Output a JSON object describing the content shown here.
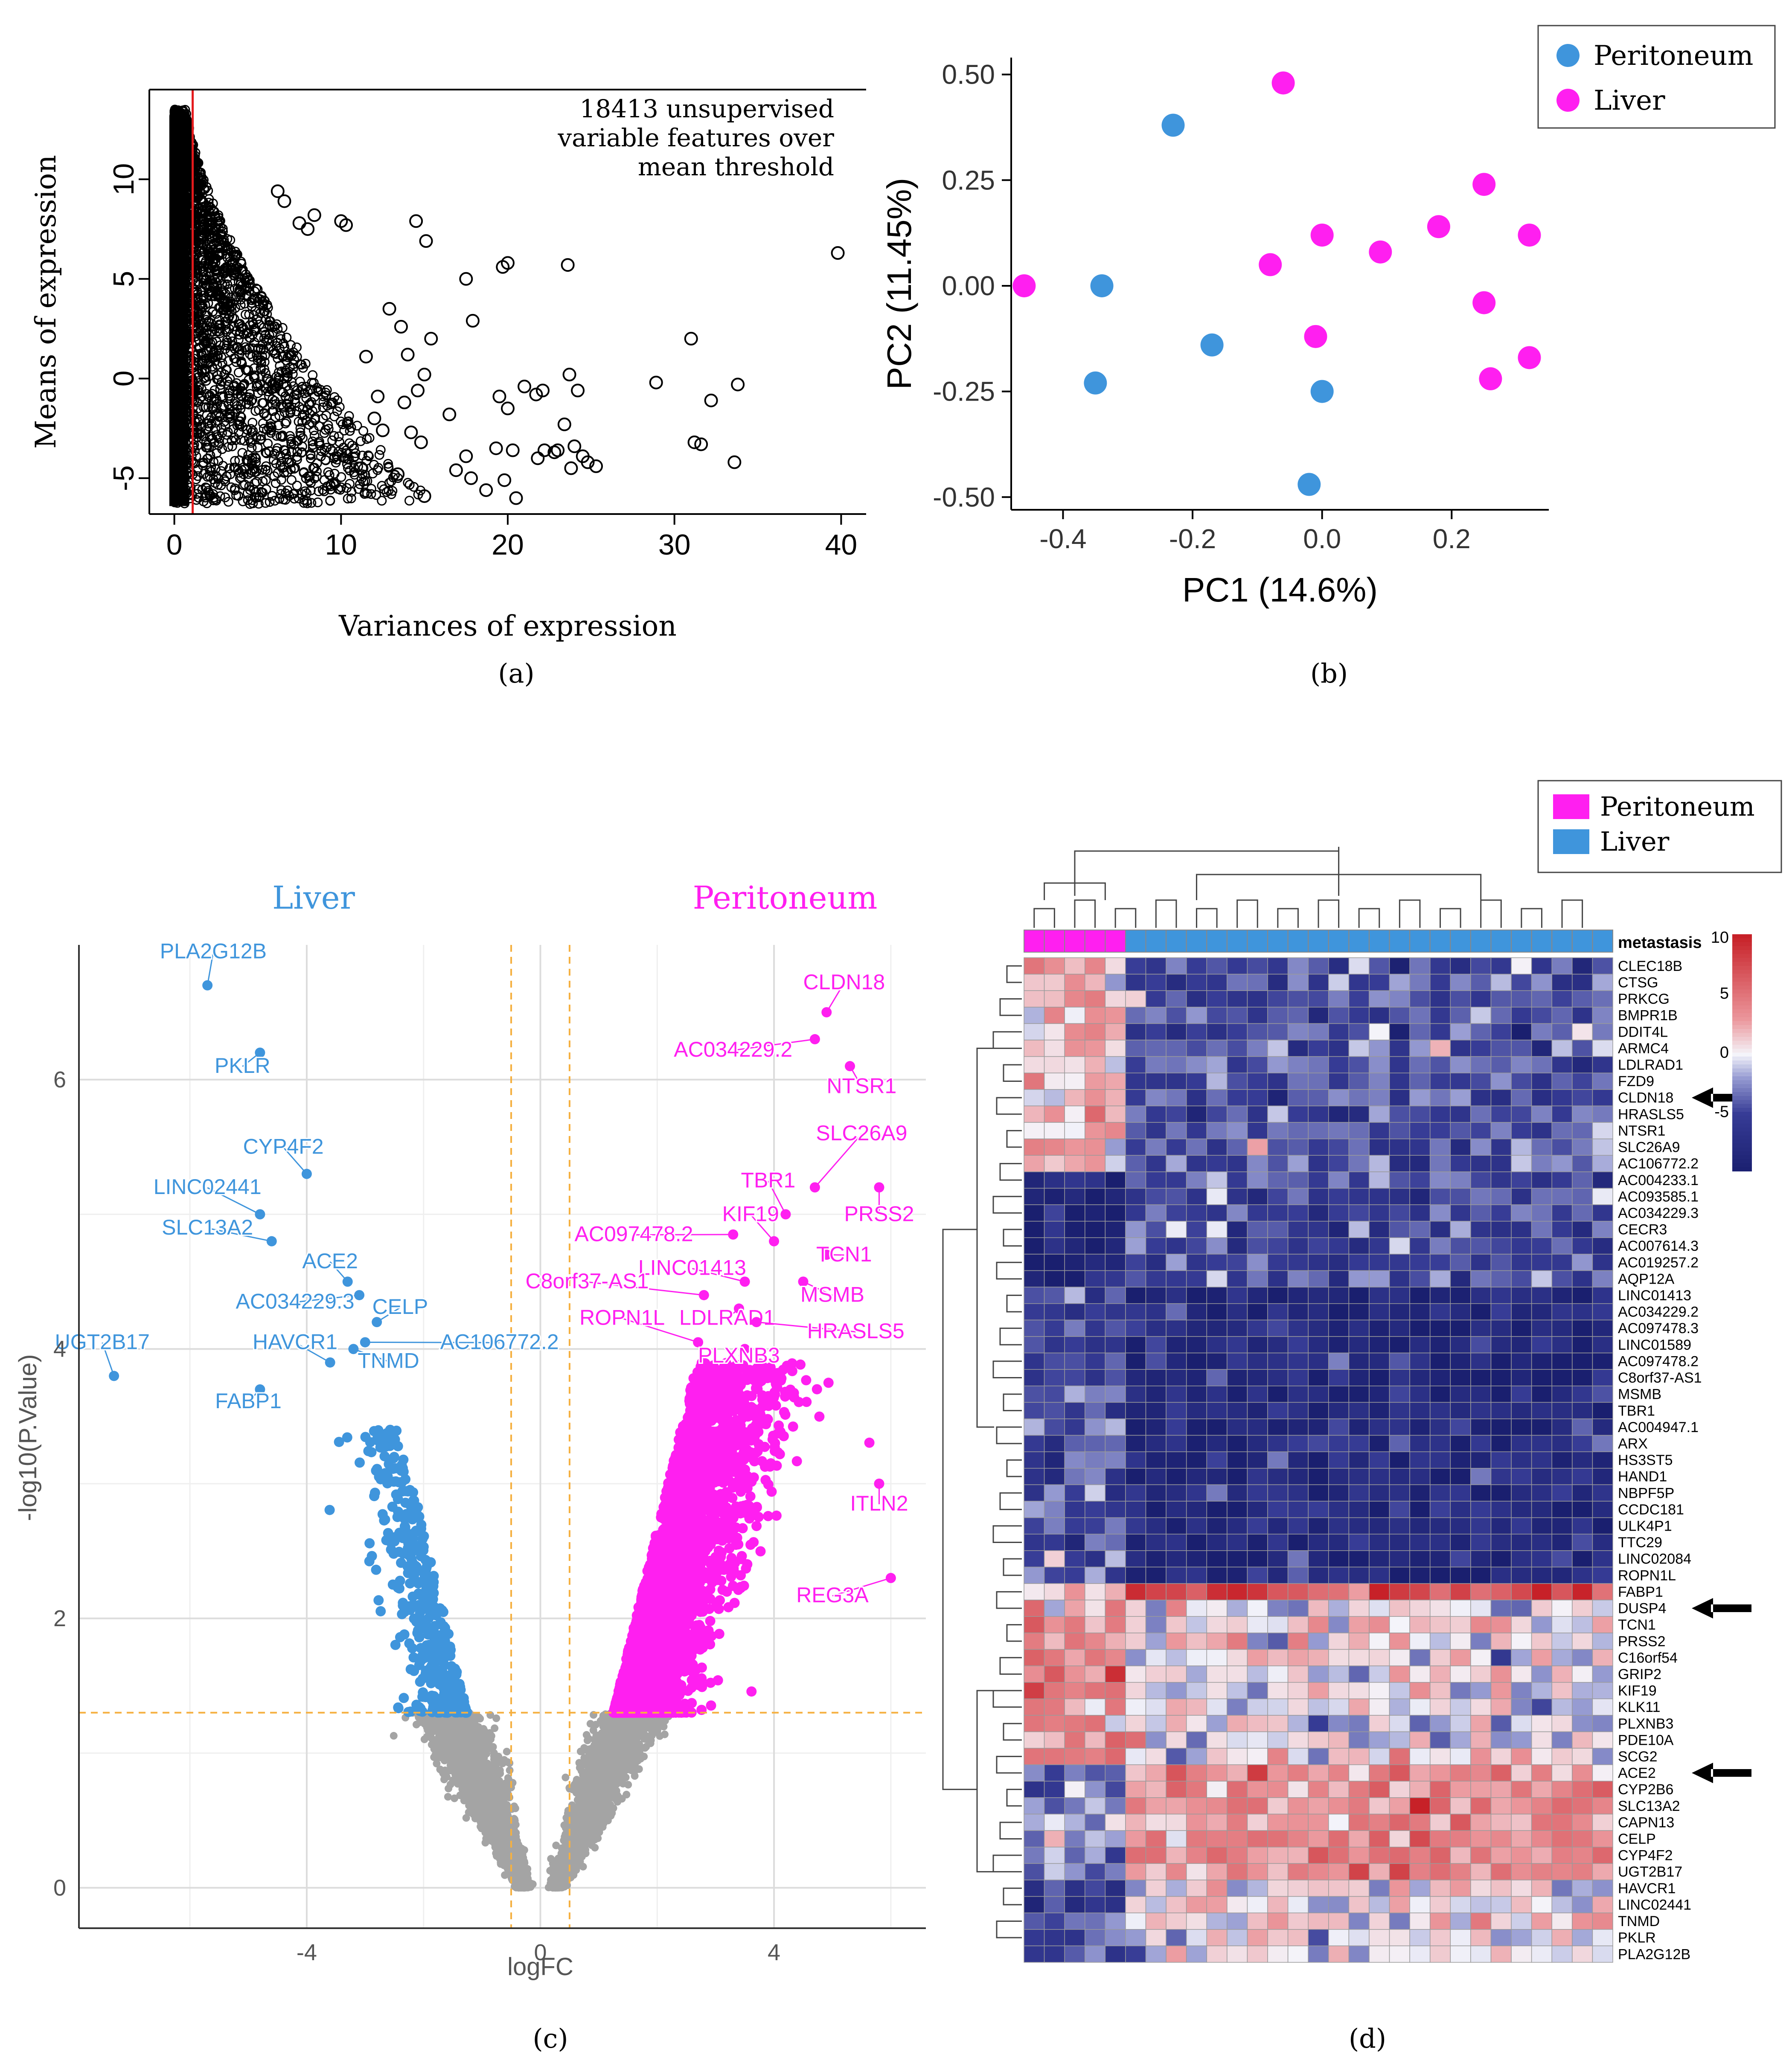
{
  "panel_labels": {
    "a": "(a)",
    "b": "(b)",
    "c": "(c)",
    "d": "(d)"
  },
  "colors": {
    "liver": "#3f95dc",
    "peritoneum": "#ff1ff0",
    "grey": "#a4a4a4",
    "threshold": "#f5b041",
    "red_line": "#e41a1c",
    "heat_low": "#1a1f6f",
    "heat_mid": "#f4f4fa",
    "heat_high": "#c72128"
  },
  "chart_data": [
    {
      "type": "scatter",
      "panel": "a",
      "title": "",
      "annotation": [
        "18413 unsupervised",
        "variable features over",
        "mean threshold"
      ],
      "xlabel": "Variances of expression",
      "ylabel": "Means of expression",
      "xlim": [
        -1.5,
        41.5
      ],
      "ylim": [
        -6.8,
        14.5
      ],
      "xticks": [
        0,
        10,
        20,
        30,
        40
      ],
      "yticks": [
        -5,
        0,
        5,
        10
      ],
      "vline": 1.1,
      "grid": false,
      "sparse_points": [
        [
          39.8,
          6.3
        ],
        [
          31.0,
          2.0
        ],
        [
          33.8,
          -0.3
        ],
        [
          32.2,
          -1.1
        ],
        [
          28.9,
          -0.2
        ],
        [
          31.2,
          -3.2
        ],
        [
          31.6,
          -3.3
        ],
        [
          33.6,
          -4.2
        ],
        [
          23.6,
          5.7
        ],
        [
          23.7,
          0.2
        ],
        [
          21.0,
          -0.4
        ],
        [
          21.7,
          -0.8
        ],
        [
          22.1,
          -0.6
        ],
        [
          24.2,
          -0.6
        ],
        [
          23.4,
          -2.3
        ],
        [
          24.0,
          -3.4
        ],
        [
          21.8,
          -4.0
        ],
        [
          22.2,
          -3.6
        ],
        [
          22.8,
          -3.7
        ],
        [
          23.0,
          -3.6
        ],
        [
          24.5,
          -3.9
        ],
        [
          24.8,
          -4.2
        ],
        [
          25.3,
          -4.4
        ],
        [
          23.8,
          -4.5
        ],
        [
          19.7,
          5.6
        ],
        [
          20.0,
          5.8
        ],
        [
          17.5,
          5.0
        ],
        [
          17.9,
          2.9
        ],
        [
          19.5,
          -0.9
        ],
        [
          20.0,
          -1.5
        ],
        [
          19.3,
          -3.5
        ],
        [
          20.3,
          -3.6
        ],
        [
          20.5,
          -6.0
        ],
        [
          19.8,
          -5.1
        ],
        [
          18.7,
          -5.6
        ],
        [
          17.8,
          -5.0
        ],
        [
          16.9,
          -4.6
        ],
        [
          17.5,
          -3.9
        ],
        [
          16.5,
          -1.8
        ],
        [
          14.5,
          7.9
        ],
        [
          15.1,
          6.9
        ],
        [
          15.4,
          2.0
        ],
        [
          15.0,
          0.2
        ],
        [
          14.6,
          -0.6
        ],
        [
          14.8,
          -3.2
        ],
        [
          15.0,
          -5.9
        ],
        [
          13.6,
          2.6
        ],
        [
          14.2,
          -2.7
        ],
        [
          14.0,
          1.2
        ],
        [
          12.9,
          3.5
        ],
        [
          13.4,
          -4.8
        ],
        [
          13.8,
          -1.2
        ],
        [
          12.2,
          -0.9
        ],
        [
          11.5,
          1.1
        ],
        [
          12.5,
          -2.6
        ],
        [
          10.3,
          7.7
        ],
        [
          10.0,
          7.9
        ],
        [
          8.4,
          8.2
        ],
        [
          6.2,
          9.4
        ],
        [
          6.6,
          8.9
        ],
        [
          7.5,
          7.8
        ],
        [
          8.0,
          7.5
        ],
        [
          12.0,
          -2.0
        ],
        [
          11.2,
          -4.5
        ]
      ],
      "dense_region": {
        "x_range": [
          0,
          15
        ],
        "y_range": [
          -6.3,
          13.7
        ],
        "note_points_near_zero_variance": 18413
      }
    },
    {
      "type": "scatter",
      "panel": "b",
      "title": "",
      "xlabel": "PC1 (14.6%)",
      "ylabel": "PC2 (11.45%)",
      "xlim": [
        -0.48,
        0.35
      ],
      "ylim": [
        -0.53,
        0.54
      ],
      "xticks": [
        -0.4,
        -0.2,
        0.0,
        0.2
      ],
      "xtick_labels": [
        "-0.4",
        "-0.2",
        "0.0",
        "0.2"
      ],
      "yticks": [
        -0.5,
        -0.25,
        0.0,
        0.25,
        0.5
      ],
      "ytick_labels": [
        "-0.50",
        "-0.25",
        "0.00",
        "0.25",
        "0.50"
      ],
      "legend": {
        "placement": "top-right",
        "entries": [
          "Peritoneum",
          "Liver"
        ]
      },
      "series": [
        {
          "name": "Peritoneum",
          "points": [
            [
              -0.23,
              0.38
            ],
            [
              -0.34,
              0.0
            ],
            [
              -0.17,
              -0.14
            ],
            [
              -0.35,
              -0.23
            ],
            [
              0.0,
              -0.25
            ],
            [
              -0.02,
              -0.47
            ]
          ]
        },
        {
          "name": "Liver",
          "points": [
            [
              -0.06,
              0.48
            ],
            [
              0.25,
              0.24
            ],
            [
              0.0,
              0.12
            ],
            [
              0.09,
              0.08
            ],
            [
              0.18,
              0.14
            ],
            [
              0.32,
              0.12
            ],
            [
              -0.08,
              0.05
            ],
            [
              -0.46,
              0.0
            ],
            [
              0.25,
              -0.04
            ],
            [
              -0.01,
              -0.12
            ],
            [
              0.32,
              -0.17
            ],
            [
              0.26,
              -0.22
            ]
          ]
        }
      ]
    },
    {
      "type": "scatter",
      "panel": "c",
      "title": "",
      "xlabel": "logFC",
      "ylabel": "-log10(P.Value)",
      "xlim": [
        -7.9,
        6.6
      ],
      "ylim": [
        -0.3,
        7.0
      ],
      "xticks": [
        -4,
        0,
        4
      ],
      "yticks": [
        0,
        2,
        4,
        6
      ],
      "thresholds": {
        "logfc": [
          -0.5,
          0.5
        ],
        "pvalue": 1.3
      },
      "group_labels": {
        "left": "Liver",
        "right": "Peritoneum"
      },
      "labeled_points": [
        {
          "label": "PLA2G12B",
          "x": -5.7,
          "y": 6.7,
          "group": "liver",
          "lx": -5.6,
          "ly": 6.9
        },
        {
          "label": "PKLR",
          "x": -4.8,
          "y": 6.2,
          "group": "liver",
          "lx": -5.1,
          "ly": 6.05
        },
        {
          "label": "CYP4F2",
          "x": -4.0,
          "y": 5.3,
          "group": "liver",
          "lx": -4.4,
          "ly": 5.45
        },
        {
          "label": "LINC02441",
          "x": -4.8,
          "y": 5.0,
          "group": "liver",
          "lx": -5.7,
          "ly": 5.15
        },
        {
          "label": "SLC13A2",
          "x": -4.6,
          "y": 4.8,
          "group": "liver",
          "lx": -5.7,
          "ly": 4.85
        },
        {
          "label": "ACE2",
          "x": -3.3,
          "y": 4.5,
          "group": "liver",
          "lx": -3.6,
          "ly": 4.6
        },
        {
          "label": "AC034229.3",
          "x": -3.1,
          "y": 4.4,
          "group": "liver",
          "lx": -4.2,
          "ly": 4.3
        },
        {
          "label": "CELP",
          "x": -2.8,
          "y": 4.2,
          "group": "liver",
          "lx": -2.4,
          "ly": 4.26
        },
        {
          "label": "HAVCR1",
          "x": -3.6,
          "y": 3.9,
          "group": "liver",
          "lx": -4.2,
          "ly": 4.0
        },
        {
          "label": "TNMD",
          "x": -3.2,
          "y": 4.0,
          "group": "liver",
          "lx": -2.6,
          "ly": 3.86
        },
        {
          "label": "AC106772.2",
          "x": -3.0,
          "y": 4.05,
          "group": "liver",
          "lx": -0.7,
          "ly": 4.0
        },
        {
          "label": "UGT2B17",
          "x": -7.3,
          "y": 3.8,
          "group": "liver",
          "lx": -7.5,
          "ly": 4.0
        },
        {
          "label": "FABP1",
          "x": -4.8,
          "y": 3.7,
          "group": "liver",
          "lx": -5.0,
          "ly": 3.56
        },
        {
          "label": "CLDN18",
          "x": 4.9,
          "y": 6.5,
          "group": "peritoneum",
          "lx": 5.2,
          "ly": 6.67
        },
        {
          "label": "AC034229.2",
          "x": 4.7,
          "y": 6.3,
          "group": "peritoneum",
          "lx": 3.3,
          "ly": 6.17
        },
        {
          "label": "NTSR1",
          "x": 5.3,
          "y": 6.1,
          "group": "peritoneum",
          "lx": 5.5,
          "ly": 5.9
        },
        {
          "label": "SLC26A9",
          "x": 4.7,
          "y": 5.2,
          "group": "peritoneum",
          "lx": 5.5,
          "ly": 5.55
        },
        {
          "label": "TBR1",
          "x": 4.2,
          "y": 5.0,
          "group": "peritoneum",
          "lx": 3.9,
          "ly": 5.2
        },
        {
          "label": "PRSS2",
          "x": 5.8,
          "y": 5.2,
          "group": "peritoneum",
          "lx": 5.8,
          "ly": 4.95
        },
        {
          "label": "KIF19",
          "x": 4.0,
          "y": 4.8,
          "group": "peritoneum",
          "lx": 3.6,
          "ly": 4.95
        },
        {
          "label": "AC097478.2",
          "x": 3.3,
          "y": 4.85,
          "group": "peritoneum",
          "lx": 1.6,
          "ly": 4.8
        },
        {
          "label": "TCN1",
          "x": 4.9,
          "y": 4.7,
          "group": "peritoneum",
          "lx": 5.2,
          "ly": 4.65
        },
        {
          "label": "LINC01413",
          "x": 3.5,
          "y": 4.5,
          "group": "peritoneum",
          "lx": 2.6,
          "ly": 4.55
        },
        {
          "label": "C8orf37-AS1",
          "x": 2.8,
          "y": 4.4,
          "group": "peritoneum",
          "lx": 0.8,
          "ly": 4.45
        },
        {
          "label": "MSMB",
          "x": 4.5,
          "y": 4.5,
          "group": "peritoneum",
          "lx": 5.0,
          "ly": 4.35
        },
        {
          "label": "ROPN1L",
          "x": 2.7,
          "y": 4.05,
          "group": "peritoneum",
          "lx": 1.4,
          "ly": 4.18
        },
        {
          "label": "LDLRAD1",
          "x": 3.4,
          "y": 4.3,
          "group": "peritoneum",
          "lx": 3.2,
          "ly": 4.18
        },
        {
          "label": "HRASLS5",
          "x": 3.7,
          "y": 4.2,
          "group": "peritoneum",
          "lx": 5.4,
          "ly": 4.08
        },
        {
          "label": "PLXNB3",
          "x": 3.5,
          "y": 4.0,
          "group": "peritoneum",
          "lx": 3.4,
          "ly": 3.9
        },
        {
          "label": "ITLN2",
          "x": 5.8,
          "y": 3.0,
          "group": "peritoneum",
          "lx": 5.8,
          "ly": 2.8
        },
        {
          "label": "REG3A",
          "x": 6.0,
          "y": 2.3,
          "group": "peritoneum",
          "lx": 5.0,
          "ly": 2.12
        }
      ]
    },
    {
      "type": "heatmap",
      "panel": "d",
      "title": "",
      "annotation_label": "metastasis",
      "legend": {
        "placement": "top-right",
        "entries": [
          "Peritoneum",
          "Liver"
        ]
      },
      "colorbar_ticks": [
        10,
        5,
        0,
        -5
      ],
      "colorbar_range": [
        -10,
        10
      ],
      "columns": [
        "Peritoneum",
        "Peritoneum",
        "Peritoneum",
        "Peritoneum",
        "Peritoneum",
        "Liver",
        "Liver",
        "Liver",
        "Liver",
        "Liver",
        "Liver",
        "Liver",
        "Liver",
        "Liver",
        "Liver",
        "Liver",
        "Liver",
        "Liver",
        "Liver",
        "Liver",
        "Liver",
        "Liver",
        "Liver",
        "Liver",
        "Liver",
        "Liver",
        "Liver",
        "Liver",
        "Liver"
      ],
      "rows": [
        "CLEC18B",
        "CTSG",
        "PRKCG",
        "BMPR1B",
        "DDIT4L",
        "ARMC4",
        "LDLRAD1",
        "FZD9",
        "CLDN18",
        "HRASLS5",
        "NTSR1",
        "SLC26A9",
        "AC106772.2",
        "AC004233.1",
        "AC093585.1",
        "AC034229.3",
        "CECR3",
        "AC007614.3",
        "AC019257.2",
        "AQP12A",
        "LINC01413",
        "AC034229.2",
        "AC097478.3",
        "LINC01589",
        "AC097478.2",
        "C8orf37-AS1",
        "MSMB",
        "TBR1",
        "AC004947.1",
        "ARX",
        "HS3ST5",
        "HAND1",
        "NBPF5P",
        "CCDC181",
        "ULK4P1",
        "TTC29",
        "LINC02084",
        "ROPN1L",
        "FABP1",
        "DUSP4",
        "TCN1",
        "PRSS2",
        "C16orf54",
        "GRIP2",
        "KIF19",
        "KLK11",
        "PLXNB3",
        "PDE10A",
        "SCG2",
        "ACE2",
        "CYP2B6",
        "SLC13A2",
        "CAPN13",
        "CELP",
        "CYP4F2",
        "UGT2B17",
        "HAVCR1",
        "LINC02441",
        "TNMD",
        "PKLR",
        "PLA2G12B"
      ],
      "arrows_at_rows": [
        "CLDN18",
        "DUSP4",
        "ACE2"
      ]
    }
  ]
}
